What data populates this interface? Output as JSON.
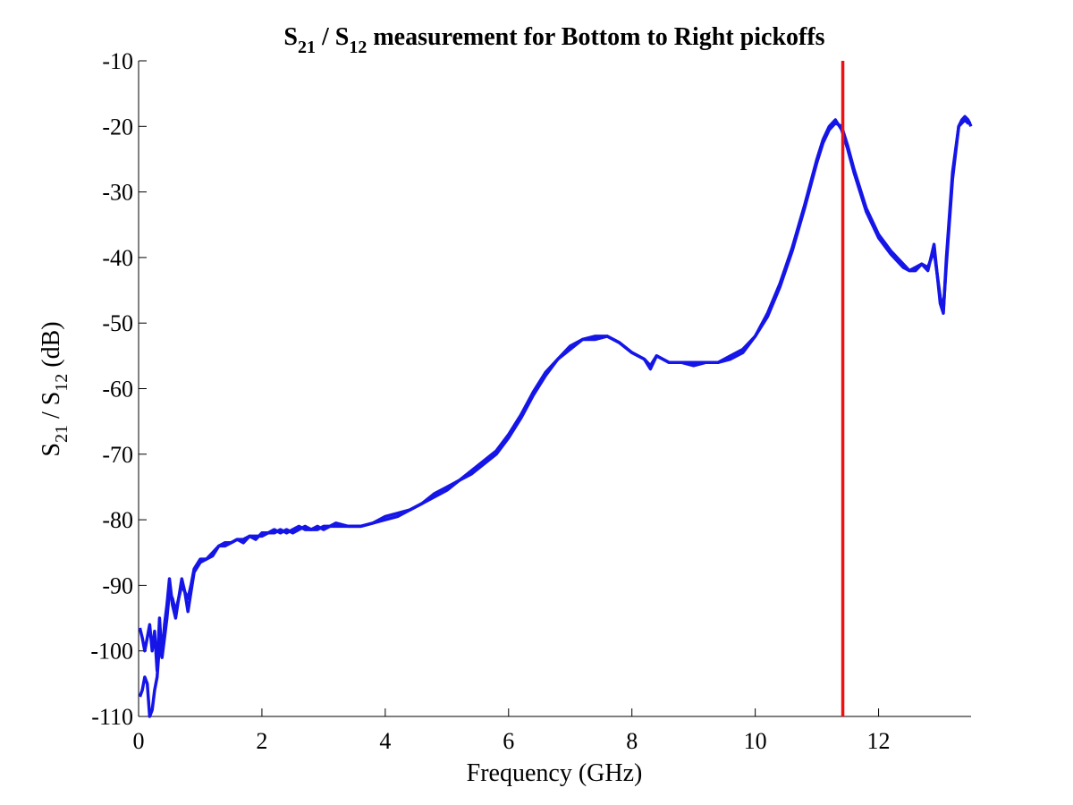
{
  "chart_data": {
    "type": "line",
    "title": {
      "pre": "S",
      "sub1": "21",
      "mid": " / S",
      "sub2": "12",
      "post": " measurement for Bottom to Right pickoffs"
    },
    "xlabel": "Frequency (GHz)",
    "ylabel": {
      "pre": "S",
      "sub1": "21",
      "mid": " / S",
      "sub2": "12",
      "post": " (dB)"
    },
    "xlim": [
      0,
      13.5
    ],
    "ylim": [
      -110,
      -10
    ],
    "xticks": [
      0,
      2,
      4,
      6,
      8,
      10,
      12
    ],
    "yticks": [
      -10,
      -20,
      -30,
      -40,
      -50,
      -60,
      -70,
      -80,
      -90,
      -100,
      -110
    ],
    "grid": false,
    "colors": {
      "series": "#1515e8",
      "marker": "#ee1111",
      "axes": "#000000"
    },
    "marker_line": {
      "x": 11.42
    },
    "series": [
      {
        "x": [
          0.02,
          0.06,
          0.1,
          0.14,
          0.18,
          0.22,
          0.26,
          0.3,
          0.34,
          0.38,
          0.42,
          0.46,
          0.5,
          0.55,
          0.6,
          0.65,
          0.7,
          0.75,
          0.8,
          0.85,
          0.9,
          1.0,
          1.1,
          1.2,
          1.3,
          1.4,
          1.5,
          1.6,
          1.7,
          1.8,
          1.9,
          2.0,
          2.1,
          2.2,
          2.3,
          2.4,
          2.5,
          2.6,
          2.7,
          2.8,
          2.9,
          3.0,
          3.2,
          3.4,
          3.6,
          3.8,
          4.0,
          4.2,
          4.4,
          4.6,
          4.8,
          5.0,
          5.2,
          5.4,
          5.6,
          5.8,
          6.0,
          6.2,
          6.4,
          6.6,
          6.8,
          7.0,
          7.2,
          7.4,
          7.6,
          7.8,
          8.0,
          8.2,
          8.3,
          8.4,
          8.5,
          8.6,
          8.8,
          9.0,
          9.2,
          9.4,
          9.6,
          9.8,
          10.0,
          10.2,
          10.4,
          10.6,
          10.8,
          11.0,
          11.1,
          11.2,
          11.3,
          11.4,
          11.5,
          11.6,
          11.8,
          12.0,
          12.2,
          12.4,
          12.5,
          12.6,
          12.7,
          12.8,
          12.9,
          13.0,
          13.05,
          13.1,
          13.2,
          13.3,
          13.35,
          13.4,
          13.45,
          13.5
        ],
        "y": [
          -96.5,
          -98,
          -100,
          -98,
          -96,
          -100,
          -97,
          -103,
          -95,
          -101,
          -96,
          -93,
          -89,
          -93,
          -95,
          -92,
          -89,
          -91,
          -94,
          -91,
          -88,
          -86.5,
          -86,
          -85.5,
          -84,
          -84,
          -83.5,
          -83,
          -83.5,
          -82.5,
          -82.5,
          -82.5,
          -82,
          -82,
          -81.5,
          -82,
          -81.5,
          -81,
          -81.5,
          -81.5,
          -81.5,
          -81,
          -81,
          -81,
          -81,
          -80.5,
          -80,
          -79.5,
          -78.5,
          -77.5,
          -76.5,
          -75.5,
          -74,
          -72.5,
          -71,
          -69.5,
          -67,
          -64,
          -60.5,
          -57.5,
          -55.5,
          -53.5,
          -52.5,
          -52,
          -52,
          -53,
          -54.5,
          -55.5,
          -56.5,
          -55,
          -55.5,
          -56,
          -56,
          -56,
          -56,
          -56,
          -55.5,
          -54.5,
          -52,
          -48.5,
          -44,
          -38.5,
          -32,
          -25,
          -22,
          -20,
          -19,
          -20.5,
          -23.5,
          -27,
          -33,
          -37,
          -39.5,
          -41.5,
          -42,
          -41.5,
          -41,
          -41.5,
          -39,
          -46,
          -48,
          -41,
          -28,
          -20,
          -19.5,
          -19,
          -19.5,
          -19.5
        ]
      },
      {
        "x": [
          0.02,
          0.06,
          0.1,
          0.14,
          0.18,
          0.22,
          0.26,
          0.3,
          0.34,
          0.38,
          0.42,
          0.46,
          0.5,
          0.55,
          0.6,
          0.65,
          0.7,
          0.75,
          0.8,
          0.85,
          0.9,
          1.0,
          1.1,
          1.2,
          1.3,
          1.4,
          1.5,
          1.6,
          1.7,
          1.8,
          1.9,
          2.0,
          2.1,
          2.2,
          2.3,
          2.4,
          2.5,
          2.6,
          2.7,
          2.8,
          2.9,
          3.0,
          3.2,
          3.4,
          3.6,
          3.8,
          4.0,
          4.2,
          4.4,
          4.6,
          4.8,
          5.0,
          5.2,
          5.4,
          5.6,
          5.8,
          6.0,
          6.2,
          6.4,
          6.6,
          6.8,
          7.0,
          7.2,
          7.4,
          7.6,
          7.8,
          8.0,
          8.2,
          8.3,
          8.4,
          8.5,
          8.6,
          8.8,
          9.0,
          9.2,
          9.4,
          9.6,
          9.8,
          10.0,
          10.2,
          10.4,
          10.6,
          10.8,
          11.0,
          11.1,
          11.2,
          11.3,
          11.4,
          11.5,
          11.6,
          11.8,
          12.0,
          12.2,
          12.4,
          12.5,
          12.6,
          12.7,
          12.8,
          12.9,
          13.0,
          13.05,
          13.1,
          13.2,
          13.3,
          13.35,
          13.4,
          13.45,
          13.5
        ],
        "y": [
          -107,
          -106,
          -104,
          -105,
          -110,
          -109,
          -106,
          -104,
          -99,
          -101,
          -98,
          -95,
          -91,
          -92,
          -94,
          -92,
          -90,
          -91,
          -92,
          -90,
          -87.5,
          -86,
          -86,
          -85,
          -84,
          -83.5,
          -83.5,
          -83,
          -83,
          -82.5,
          -83,
          -82,
          -82,
          -81.5,
          -82,
          -81.5,
          -82,
          -81.5,
          -81,
          -81.5,
          -81,
          -81.5,
          -80.5,
          -81,
          -81,
          -80.5,
          -79.5,
          -79,
          -78.5,
          -77.5,
          -76,
          -75,
          -74,
          -73,
          -71.5,
          -70,
          -67.5,
          -64.5,
          -61,
          -58,
          -55.5,
          -54,
          -52.5,
          -52.5,
          -52,
          -53,
          -54.5,
          -55.5,
          -57,
          -55,
          -55.5,
          -56,
          -56,
          -56.5,
          -56,
          -56,
          -55,
          -54,
          -52,
          -49,
          -44.5,
          -39,
          -32.5,
          -25.5,
          -22.5,
          -20.5,
          -19.5,
          -20,
          -23,
          -26.5,
          -32.5,
          -36.5,
          -39,
          -41,
          -42,
          -42,
          -41,
          -42,
          -38,
          -47,
          -48.5,
          -40,
          -27,
          -20,
          -19,
          -18.5,
          -19,
          -20
        ]
      }
    ]
  }
}
